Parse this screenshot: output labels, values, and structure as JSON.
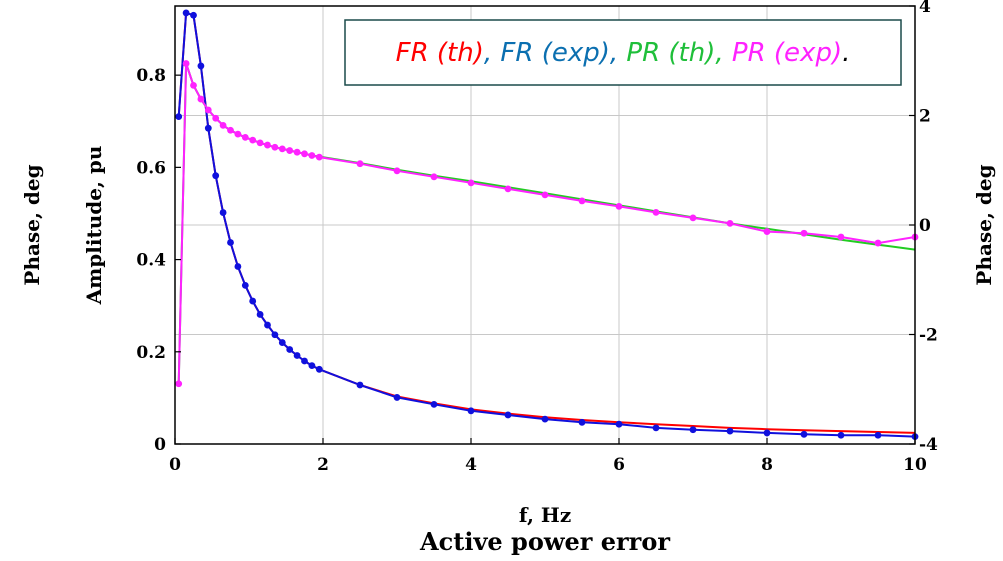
{
  "chart_data": {
    "type": "line",
    "xlabel": "f, Hz",
    "caption": "Active power error",
    "ylabel_left_outer": "Phase, deg",
    "ylabel_left": "Amplitude, pu",
    "ylabel_right": "Phase, deg",
    "xlim": [
      0,
      10
    ],
    "ylim_left": [
      0,
      0.95
    ],
    "ylim_right": [
      -4,
      4
    ],
    "x_ticks": [
      "0",
      "2",
      "4",
      "6",
      "8",
      "10"
    ],
    "y_left_ticks": [
      "0",
      "0.2",
      "0.4",
      "0.6",
      "0.8"
    ],
    "y_right_ticks": [
      "-4",
      "-2",
      "0",
      "2",
      "4"
    ],
    "grid": true,
    "legend": {
      "placement": "top-right",
      "entries": [
        {
          "text": "FR (th)",
          "color": "#ff0000"
        },
        {
          "text": ", ",
          "color": "#0b6fb0"
        },
        {
          "text": "FR (exp)",
          "color": "#0b6fb0"
        },
        {
          "text": ", ",
          "color": "#0b6fb0"
        },
        {
          "text": "PR (th)",
          "color": "#1fbf3a"
        },
        {
          "text": ", ",
          "color": "#1fbf3a"
        },
        {
          "text": "PR (exp)",
          "color": "#ff22ff"
        },
        {
          "text": ".",
          "color": "#000000"
        }
      ]
    },
    "series": [
      {
        "name": "FR (th)",
        "color": "#ff0000",
        "axis": "left",
        "markers": false,
        "x": [
          0.05,
          0.15,
          0.25,
          0.35,
          0.45,
          0.55,
          0.65,
          0.75,
          0.85,
          0.95,
          1.05,
          1.15,
          1.25,
          1.35,
          1.45,
          1.55,
          1.65,
          1.75,
          1.85,
          1.95,
          2.5,
          3,
          3.5,
          4,
          4.5,
          5,
          5.5,
          6,
          6.5,
          7,
          7.5,
          8,
          8.5,
          9,
          9.5,
          10
        ],
        "y": [
          0.71,
          0.935,
          0.93,
          0.82,
          0.685,
          0.582,
          0.502,
          0.437,
          0.385,
          0.344,
          0.31,
          0.281,
          0.258,
          0.237,
          0.22,
          0.205,
          0.192,
          0.18,
          0.17,
          0.162,
          0.128,
          0.103,
          0.088,
          0.075,
          0.066,
          0.058,
          0.052,
          0.047,
          0.043,
          0.039,
          0.035,
          0.032,
          0.03,
          0.028,
          0.026,
          0.024
        ]
      },
      {
        "name": "FR (exp)",
        "color": "#1010dd",
        "axis": "left",
        "markers": true,
        "x": [
          0.05,
          0.15,
          0.25,
          0.35,
          0.45,
          0.55,
          0.65,
          0.75,
          0.85,
          0.95,
          1.05,
          1.15,
          1.25,
          1.35,
          1.45,
          1.55,
          1.65,
          1.75,
          1.85,
          1.95,
          2.5,
          3,
          3.5,
          4,
          4.5,
          5,
          5.5,
          6,
          6.5,
          7,
          7.5,
          8,
          8.5,
          9,
          9.5,
          10
        ],
        "y": [
          0.71,
          0.935,
          0.93,
          0.82,
          0.685,
          0.582,
          0.502,
          0.437,
          0.385,
          0.344,
          0.31,
          0.281,
          0.258,
          0.237,
          0.22,
          0.205,
          0.192,
          0.18,
          0.17,
          0.162,
          0.128,
          0.101,
          0.086,
          0.072,
          0.063,
          0.054,
          0.047,
          0.043,
          0.035,
          0.031,
          0.028,
          0.024,
          0.021,
          0.019,
          0.019,
          0.016
        ]
      },
      {
        "name": "PR (th)",
        "color": "#22cc22",
        "axis": "right",
        "markers": false,
        "x": [
          0.05,
          0.15,
          0.25,
          0.35,
          0.45,
          0.55,
          0.65,
          0.75,
          0.85,
          0.95,
          1.05,
          1.15,
          1.25,
          1.35,
          1.45,
          1.55,
          1.65,
          1.75,
          1.85,
          1.95,
          2.5,
          3,
          3.5,
          4,
          4.5,
          5,
          5.5,
          6,
          6.5,
          7,
          7.5,
          8,
          8.5,
          9,
          9.5,
          10
        ],
        "y": [
          -2.9,
          2.95,
          2.55,
          2.3,
          2.1,
          1.95,
          1.82,
          1.73,
          1.66,
          1.6,
          1.55,
          1.5,
          1.46,
          1.42,
          1.39,
          1.36,
          1.33,
          1.3,
          1.27,
          1.25,
          1.13,
          1.01,
          0.9,
          0.8,
          0.69,
          0.58,
          0.47,
          0.36,
          0.25,
          0.14,
          0.03,
          -0.07,
          -0.17,
          -0.27,
          -0.36,
          -0.45
        ]
      },
      {
        "name": "PR (exp)",
        "color": "#ff22ff",
        "axis": "right",
        "markers": true,
        "x": [
          0.05,
          0.15,
          0.25,
          0.35,
          0.45,
          0.55,
          0.65,
          0.75,
          0.85,
          0.95,
          1.05,
          1.15,
          1.25,
          1.35,
          1.45,
          1.55,
          1.65,
          1.75,
          1.85,
          1.95,
          2.5,
          3,
          3.5,
          4,
          4.5,
          5,
          5.5,
          6,
          6.5,
          7,
          7.5,
          8,
          8.5,
          9,
          9.5,
          10
        ],
        "y": [
          -2.9,
          2.95,
          2.55,
          2.3,
          2.1,
          1.95,
          1.82,
          1.73,
          1.66,
          1.6,
          1.55,
          1.5,
          1.46,
          1.42,
          1.39,
          1.36,
          1.33,
          1.3,
          1.27,
          1.24,
          1.12,
          0.99,
          0.88,
          0.77,
          0.66,
          0.55,
          0.44,
          0.34,
          0.23,
          0.13,
          0.03,
          -0.12,
          -0.15,
          -0.22,
          -0.33,
          -0.22
        ]
      }
    ]
  }
}
